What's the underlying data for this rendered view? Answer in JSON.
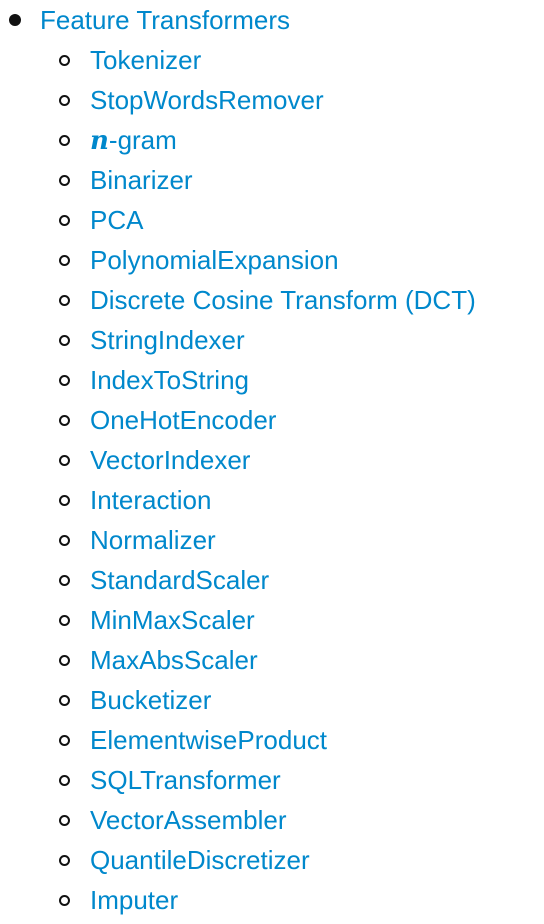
{
  "toc": {
    "title": "Feature Transformers",
    "items": [
      {
        "label": "Tokenizer"
      },
      {
        "label": "StopWordsRemover"
      },
      {
        "label": "n-gram",
        "math_prefix": "n",
        "suffix": "-gram"
      },
      {
        "label": "Binarizer"
      },
      {
        "label": "PCA"
      },
      {
        "label": "PolynomialExpansion"
      },
      {
        "label": "Discrete Cosine Transform (DCT)"
      },
      {
        "label": "StringIndexer"
      },
      {
        "label": "IndexToString"
      },
      {
        "label": "OneHotEncoder"
      },
      {
        "label": "VectorIndexer"
      },
      {
        "label": "Interaction"
      },
      {
        "label": "Normalizer"
      },
      {
        "label": "StandardScaler"
      },
      {
        "label": "MinMaxScaler"
      },
      {
        "label": "MaxAbsScaler"
      },
      {
        "label": "Bucketizer"
      },
      {
        "label": "ElementwiseProduct"
      },
      {
        "label": "SQLTransformer"
      },
      {
        "label": "VectorAssembler"
      },
      {
        "label": "QuantileDiscretizer"
      },
      {
        "label": "Imputer"
      }
    ]
  },
  "colors": {
    "link": "#0088cc",
    "bullet": "#111111",
    "background": "#ffffff"
  }
}
